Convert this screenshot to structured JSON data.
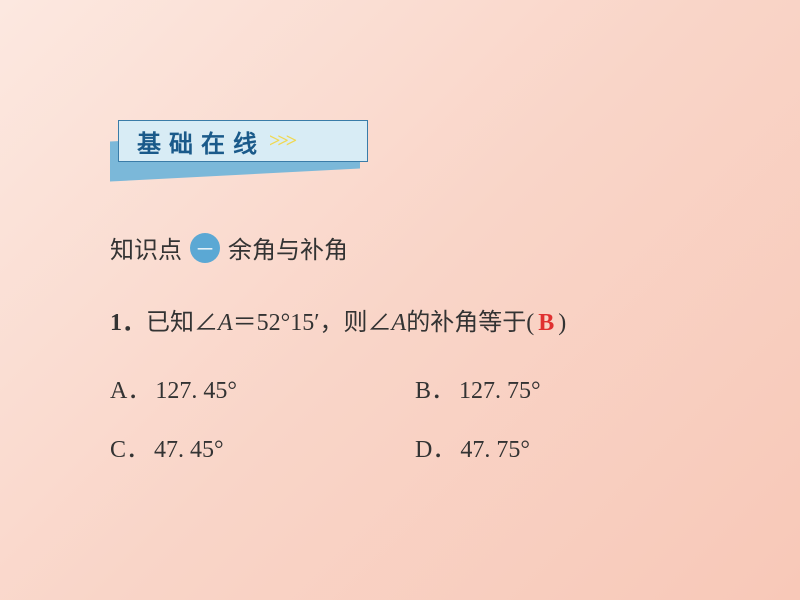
{
  "background": {
    "gradient_start": "#fce8e0",
    "gradient_mid": "#f9d5c8",
    "gradient_end": "#f8c8b8"
  },
  "banner": {
    "text": "基础在线",
    "arrows": ">>>",
    "front_bg": "#d8ecf5",
    "back_bg": "#7bb8d9",
    "border_color": "#3a7ca8",
    "text_color": "#1a5a8a",
    "arrow_color": "#f0d850",
    "fontsize": 24
  },
  "section": {
    "prefix": "知识点",
    "number": "一",
    "title": "余角与补角",
    "circle_bg": "#5ba8d4",
    "circle_fg": "#ffffff",
    "fontsize": 24,
    "text_color": "#333333"
  },
  "question": {
    "number": "1．",
    "text_before": "已知∠",
    "var1": "A",
    "equals": "＝52°15′，则∠",
    "var2": "A",
    "text_after": " 的补角等于(",
    "answer": "B",
    "close": ")",
    "answer_color": "#e03030",
    "fontsize": 24
  },
  "options": {
    "A": {
      "label": "A．",
      "value": "127. 45°"
    },
    "B": {
      "label": "B．",
      "value": "127. 75°"
    },
    "C": {
      "label": "C．",
      "value": "47. 45°"
    },
    "D": {
      "label": "D．",
      "value": "47. 75°"
    },
    "fontsize": 24
  }
}
